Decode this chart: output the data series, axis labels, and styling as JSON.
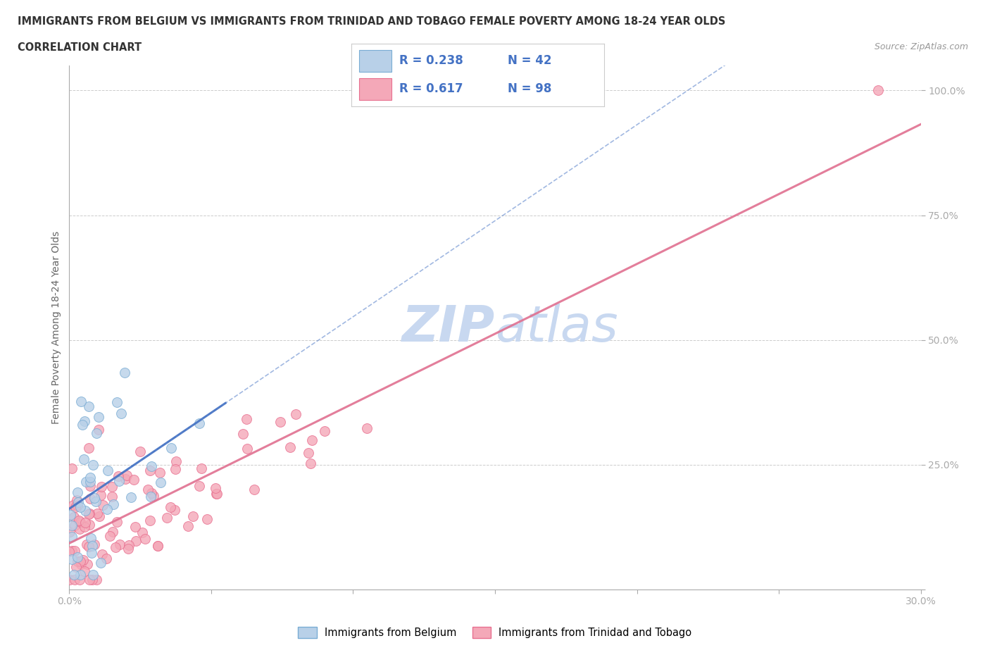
{
  "title_line1": "IMMIGRANTS FROM BELGIUM VS IMMIGRANTS FROM TRINIDAD AND TOBAGO FEMALE POVERTY AMONG 18-24 YEAR OLDS",
  "title_line2": "CORRELATION CHART",
  "source": "Source: ZipAtlas.com",
  "ylabel": "Female Poverty Among 18-24 Year Olds",
  "xlim": [
    0.0,
    0.3
  ],
  "ylim": [
    0.0,
    1.05
  ],
  "ytick_positions": [
    0.0,
    0.25,
    0.5,
    0.75,
    1.0
  ],
  "ytick_labels": [
    "",
    "25.0%",
    "50.0%",
    "75.0%",
    "100.0%"
  ],
  "belgium_color": "#b8d0e8",
  "tt_color": "#f4a8b8",
  "belgium_edge_color": "#7aadd4",
  "tt_edge_color": "#e87090",
  "belgium_line_color": "#4472c4",
  "tt_line_color": "#e07090",
  "belgium_R": 0.238,
  "belgium_N": 42,
  "tt_R": 0.617,
  "tt_N": 98,
  "legend_color": "#4472c4",
  "watermark_color": "#c8d8f0",
  "background_color": "#ffffff"
}
